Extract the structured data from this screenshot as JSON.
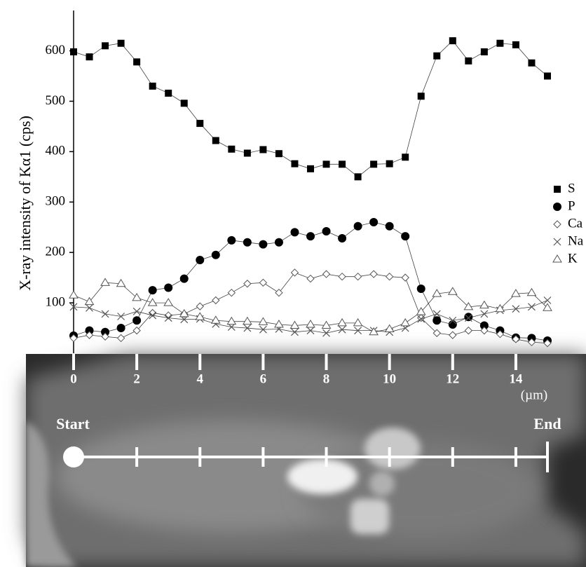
{
  "chart_data": {
    "type": "line",
    "y_label": "X-ray intensity of Kα1 (cps)",
    "x_unit": "(µm)",
    "start_label": "Start",
    "end_label": "End",
    "x": [
      0,
      0.5,
      1,
      1.5,
      2,
      2.5,
      3,
      3.5,
      4,
      4.5,
      5,
      5.5,
      6,
      6.5,
      7,
      7.5,
      8,
      8.5,
      9,
      9.5,
      10,
      10.5,
      11,
      11.5,
      12,
      12.5,
      13,
      13.5,
      14,
      14.5,
      15
    ],
    "xlim": [
      0,
      15
    ],
    "xticks": [
      0,
      2,
      4,
      6,
      8,
      10,
      12,
      14
    ],
    "ylim": [
      0,
      680
    ],
    "yticks": [
      100,
      200,
      300,
      400,
      500,
      600
    ],
    "series": [
      {
        "name": "S",
        "color": "#000000",
        "marker": "square-filled",
        "values": [
          598,
          588,
          610,
          615,
          578,
          530,
          516,
          496,
          456,
          422,
          405,
          397,
          404,
          396,
          376,
          366,
          375,
          375,
          350,
          375,
          376,
          389,
          510,
          590,
          620,
          580,
          598,
          615,
          612,
          576,
          550
        ]
      },
      {
        "name": "P",
        "color": "#000000",
        "marker": "circle-filled",
        "values": [
          35,
          45,
          42,
          50,
          65,
          125,
          130,
          148,
          185,
          195,
          224,
          220,
          216,
          220,
          240,
          232,
          242,
          228,
          252,
          260,
          252,
          232,
          128,
          65,
          57,
          72,
          55,
          45,
          31,
          30,
          25
        ]
      },
      {
        "name": "Ca",
        "color": "#000000",
        "marker": "diamond-open",
        "values": [
          30,
          36,
          33,
          30,
          45,
          80,
          75,
          78,
          93,
          105,
          120,
          138,
          140,
          120,
          160,
          148,
          157,
          152,
          152,
          157,
          152,
          150,
          70,
          40,
          36,
          45,
          45,
          38,
          28,
          22,
          20
        ]
      },
      {
        "name": "Na",
        "color": "#000000",
        "marker": "cross",
        "values": [
          92,
          90,
          78,
          73,
          83,
          75,
          70,
          67,
          68,
          58,
          52,
          50,
          47,
          48,
          42,
          45,
          40,
          47,
          45,
          45,
          42,
          50,
          68,
          78,
          65,
          70,
          78,
          85,
          88,
          92,
          105
        ]
      },
      {
        "name": "K",
        "color": "#000000",
        "marker": "triangle-open",
        "values": [
          115,
          102,
          140,
          138,
          110,
          100,
          100,
          78,
          72,
          65,
          63,
          63,
          62,
          57,
          55,
          57,
          55,
          60,
          60,
          42,
          48,
          60,
          82,
          118,
          122,
          92,
          95,
          88,
          118,
          120,
          90
        ]
      }
    ]
  }
}
